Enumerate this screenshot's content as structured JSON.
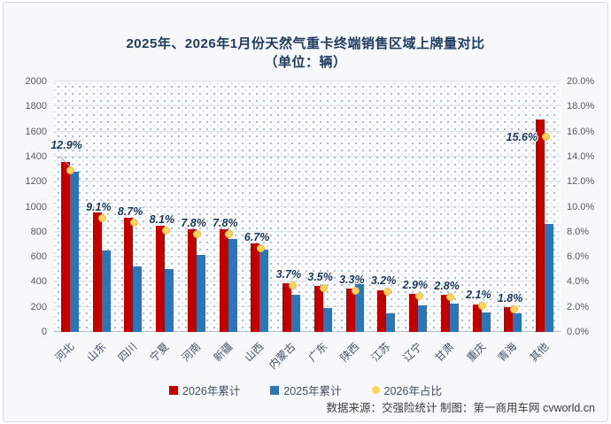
{
  "title": {
    "line1": "2025年、2026年1月份天然气重卡终端销售区域上牌量对比",
    "line2": "（单位：辆）"
  },
  "chart_data": {
    "type": "bar",
    "title": "2025年、2026年1月份天然气重卡终端销售区域上牌量对比（单位：辆）",
    "categories": [
      "河北",
      "山东",
      "四川",
      "宁夏",
      "河南",
      "新疆",
      "山西",
      "内蒙古",
      "广东",
      "陕西",
      "江苏",
      "辽宁",
      "甘肃",
      "重庆",
      "青海",
      "其他"
    ],
    "series": [
      {
        "name": "2026年累计",
        "type": "bar",
        "axis": "left",
        "color": "#c00000",
        "values": [
          1355,
          955,
          915,
          850,
          820,
          818,
          705,
          390,
          370,
          345,
          335,
          305,
          295,
          220,
          195,
          1700
        ]
      },
      {
        "name": "2025年累计",
        "type": "bar",
        "axis": "left",
        "color": "#2e75b6",
        "values": [
          1280,
          650,
          520,
          500,
          615,
          740,
          660,
          300,
          190,
          420,
          150,
          210,
          230,
          155,
          150,
          860
        ]
      },
      {
        "name": "2026年占比",
        "type": "point",
        "axis": "right",
        "color": "#ffd45e",
        "values": [
          12.9,
          9.1,
          8.7,
          8.1,
          7.8,
          7.8,
          6.7,
          3.7,
          3.5,
          3.3,
          3.2,
          2.9,
          2.8,
          2.1,
          1.8,
          15.6
        ],
        "labels": [
          "12.9%",
          "9.1%",
          "8.7%",
          "8.1%",
          "7.8%",
          "7.8%",
          "6.7%",
          "3.7%",
          "3.5%",
          "3.3%",
          "3.2%",
          "2.9%",
          "2.8%",
          "2.1%",
          "1.8%",
          "15.6%"
        ]
      }
    ],
    "left_axis": {
      "min": 0,
      "max": 2000,
      "step": 200,
      "ticks": [
        "0",
        "200",
        "400",
        "600",
        "800",
        "1000",
        "1200",
        "1400",
        "1600",
        "1800",
        "2000"
      ]
    },
    "right_axis": {
      "min": 0,
      "max": 20,
      "step": 2,
      "ticks": [
        "0.0%",
        "2.0%",
        "4.0%",
        "6.0%",
        "8.0%",
        "10.0%",
        "12.0%",
        "14.0%",
        "16.0%",
        "18.0%",
        "20.0%"
      ]
    },
    "grid": true,
    "legend_position": "bottom"
  },
  "legend": {
    "items": [
      {
        "label": "2026年累计",
        "marker": "square",
        "color": "#c00000"
      },
      {
        "label": "2025年累计",
        "marker": "square",
        "color": "#2e75b6"
      },
      {
        "label": "2026年占比",
        "marker": "circle",
        "color": "#ffd45e"
      }
    ]
  },
  "footer": {
    "text": "数据来源：交强险统计 制图：第一商用车网 cvworld.cn"
  }
}
